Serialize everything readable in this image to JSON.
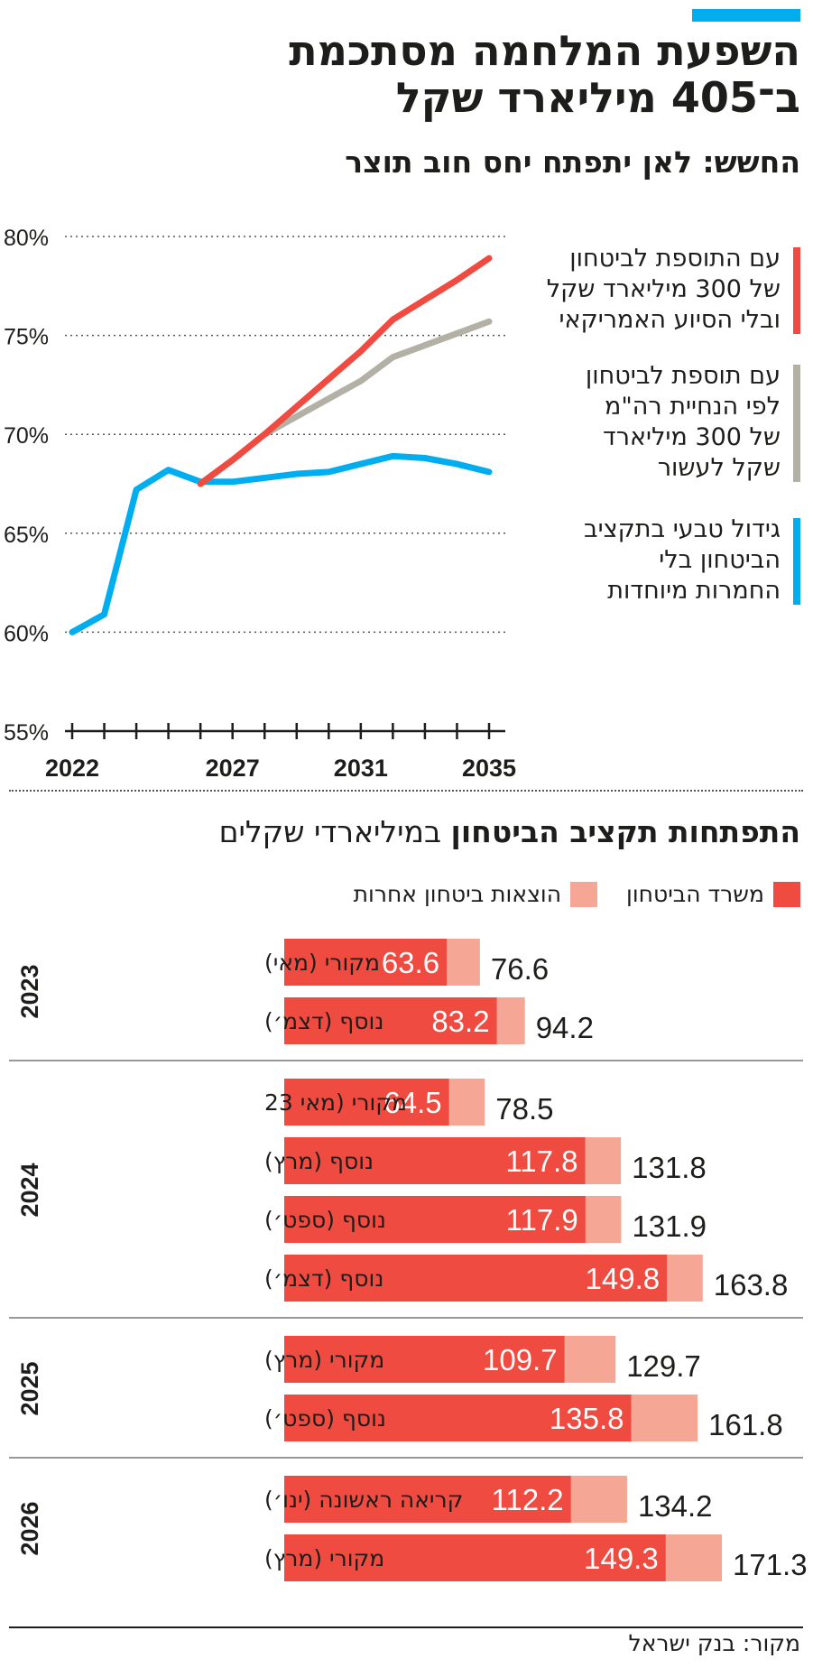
{
  "header": {
    "title_line1": "השפעת המלחמה מסתכמת",
    "title_line2": "ב־405 מיליארד שקל",
    "subtitle": "החשש: לאן יתפתח יחס חוב תוצר"
  },
  "colors": {
    "accent": "#00aeef",
    "red": "#ef4b41",
    "gray": "#b3b1a6",
    "blue": "#00aeef",
    "pink": "#f6a694"
  },
  "chart_data": [
    {
      "type": "line",
      "title": "החשש: לאן יתפתח יחס חוב תוצר",
      "ylim": [
        55,
        80
      ],
      "yticks": [
        "80%",
        "75%",
        "70%",
        "65%",
        "60%",
        "55%"
      ],
      "ytick_values": [
        80,
        75,
        70,
        65,
        60,
        55
      ],
      "xticks": [
        "2022",
        "2027",
        "2031",
        "2035"
      ],
      "xtick_values": [
        2022,
        2027,
        2031,
        2035
      ],
      "xlim": [
        2022,
        2035
      ],
      "grid": true,
      "series": [
        {
          "name": "עם התוספת לביטחון של 300 מיליארד שקל ובלי הסיוע האמריקאי",
          "color": "red",
          "x": [
            2026,
            2027,
            2028,
            2029,
            2030,
            2031,
            2032,
            2033,
            2034,
            2035
          ],
          "values": [
            67.5,
            68.7,
            70.0,
            71.4,
            72.8,
            74.2,
            75.8,
            76.8,
            77.8,
            78.9
          ]
        },
        {
          "name": "עם תוספת לביטחון לפי הנחיית רה\"מ של 300 מיליארד שקל לעשור",
          "color": "gray",
          "x": [
            2026,
            2027,
            2028,
            2029,
            2030,
            2031,
            2032,
            2033,
            2034,
            2035
          ],
          "values": [
            67.5,
            68.7,
            70.0,
            70.9,
            71.8,
            72.7,
            73.9,
            74.5,
            75.1,
            75.7
          ]
        },
        {
          "name": "גידול טבעי בתקציב הביטחון בלי החמרות מיוחדות",
          "color": "blue",
          "x": [
            2022,
            2023,
            2024,
            2025,
            2026,
            2027,
            2028,
            2029,
            2030,
            2031,
            2032,
            2033,
            2034,
            2035
          ],
          "values": [
            60.0,
            60.9,
            67.2,
            68.2,
            67.6,
            67.6,
            67.8,
            68.0,
            68.1,
            68.5,
            68.9,
            68.8,
            68.5,
            68.1
          ]
        }
      ]
    },
    {
      "type": "bar",
      "title_bold": "התפתחות תקציב הביטחון",
      "title_rest": " במיליארדי שקלים",
      "legend": [
        "משרד הביטחון",
        "הוצאות ביטחון אחרות"
      ],
      "xlim": [
        0,
        171.3
      ],
      "groups": [
        {
          "year": "2023",
          "bars": [
            {
              "label": "מקורי (מאי)",
              "ministry": 63.6,
              "total": 76.6,
              "ministry_text": "63.6",
              "total_text": "76.6"
            },
            {
              "label": "נוסף (דצמ׳)",
              "ministry": 83.2,
              "total": 94.2,
              "ministry_text": "83.2",
              "total_text": "94.2"
            }
          ]
        },
        {
          "year": "2024",
          "bars": [
            {
              "label": "מקורי (מאי 23",
              "ministry": 64.5,
              "total": 78.5,
              "ministry_text": "64.5",
              "total_text": "78.5"
            },
            {
              "label": "נוסף (מרץ)",
              "ministry": 117.8,
              "total": 131.8,
              "ministry_text": "117.8",
              "total_text": "131.8"
            },
            {
              "label": "נוסף (ספט׳)",
              "ministry": 117.9,
              "total": 131.9,
              "ministry_text": "117.9",
              "total_text": "131.9"
            },
            {
              "label": "נוסף (דצמ׳)",
              "ministry": 149.8,
              "total": 163.8,
              "ministry_text": "149.8",
              "total_text": "163.8"
            }
          ]
        },
        {
          "year": "2025",
          "bars": [
            {
              "label": "מקורי (מרץ)",
              "ministry": 109.7,
              "total": 129.7,
              "ministry_text": "109.7",
              "total_text": "129.7"
            },
            {
              "label": "נוסף (ספט׳)",
              "ministry": 135.8,
              "total": 161.8,
              "ministry_text": "135.8",
              "total_text": "161.8"
            }
          ]
        },
        {
          "year": "2026",
          "bars": [
            {
              "label": "קריאה ראשונה (ינו׳)",
              "ministry": 112.2,
              "total": 134.2,
              "ministry_text": "112.2",
              "total_text": "134.2"
            },
            {
              "label": "מקורי (מרץ)",
              "ministry": 149.3,
              "total": 171.3,
              "ministry_text": "149.3",
              "total_text": "171.3"
            }
          ]
        }
      ]
    }
  ],
  "line_legend": [
    {
      "text_lines": [
        "עם התוספת לביטחון",
        "של 300 מיליארד שקל",
        "ובלי הסיוע האמריקאי"
      ],
      "color": "red"
    },
    {
      "text_lines": [
        "עם תוספת לביטחון",
        "לפי הנחיית רה\"מ",
        "של 300 מיליארד",
        "שקל לעשור"
      ],
      "color": "gray"
    },
    {
      "text_lines": [
        "גידול טבעי בתקציב",
        "הביטחון בלי",
        "החמרות מיוחדות"
      ],
      "color": "blue"
    }
  ],
  "source": "מקור: בנק ישראל"
}
